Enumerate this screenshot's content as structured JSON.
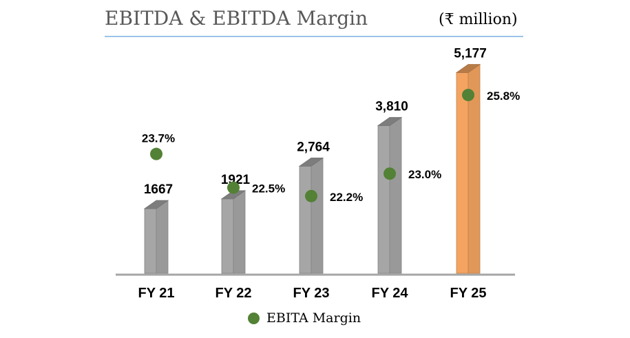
{
  "header": {
    "title": "EBITDA & EBITDA Margin",
    "unit": "(₹ million)"
  },
  "legend": {
    "label": "EBITA Margin",
    "color": "#538135"
  },
  "colors": {
    "bar_default": "#a6a6a6",
    "bar_highlight": "#f4a460",
    "margin_marker": "#538135"
  },
  "chart_data": {
    "type": "bar",
    "categories": [
      "FY 21",
      "FY 22",
      "FY 23",
      "FY 24",
      "FY 25"
    ],
    "series": [
      {
        "values": [
          1667,
          1921,
          2764,
          3810,
          5177
        ],
        "value_labels": [
          "1667",
          "1921",
          "2,764",
          "3,810",
          "5,177"
        ]
      },
      {
        "name": "EBITA Margin",
        "type": "scatter",
        "values": [
          23.7,
          22.5,
          22.2,
          23.0,
          25.8
        ],
        "value_labels": [
          "23.7%",
          "22.5%",
          "22.2%",
          "23.0%",
          "25.8%"
        ]
      }
    ],
    "title": "EBITDA & EBITDA Margin",
    "unit": "(₹ million)",
    "xlabel": "",
    "ylabel": "",
    "highlight_category": "FY 25",
    "legend_position": "bottom",
    "grid": false
  }
}
